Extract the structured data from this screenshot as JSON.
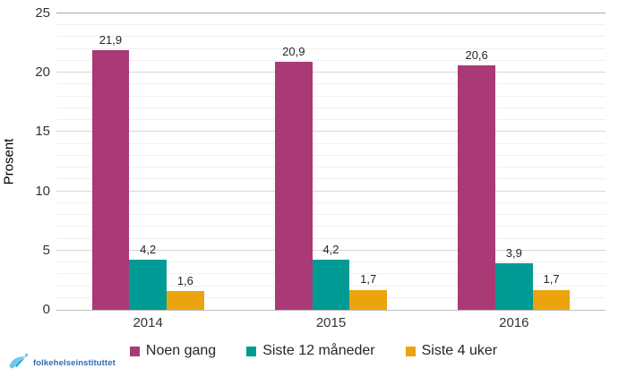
{
  "chart_data": {
    "type": "bar",
    "title": "",
    "xlabel": "",
    "ylabel": "Prosent",
    "categories": [
      "2014",
      "2015",
      "2016"
    ],
    "series": [
      {
        "name": "Noen gang",
        "color": "#a93a76",
        "values": [
          21.9,
          20.9,
          20.6
        ],
        "value_labels": [
          "21,9",
          "20,9",
          "20,6"
        ]
      },
      {
        "name": "Siste 12 måneder",
        "color": "#009b94",
        "values": [
          4.2,
          4.2,
          3.9
        ],
        "value_labels": [
          "4,2",
          "4,2",
          "3,9"
        ]
      },
      {
        "name": "Siste 4 uker",
        "color": "#eba40d",
        "values": [
          1.6,
          1.7,
          1.7
        ],
        "value_labels": [
          "1,6",
          "1,7",
          "1,7"
        ]
      }
    ],
    "ylim": [
      0,
      25
    ],
    "yticks": [
      0,
      5,
      10,
      15,
      20,
      25
    ],
    "minor_unit": 1,
    "grid": true,
    "legend_position": "bottom"
  },
  "footer": {
    "logo_text": "folkehelseinstituttet"
  },
  "colors": {
    "axis_line": "#bfbfbf",
    "major_grid": "#d6d6d6",
    "minor_grid": "#f0f0f0",
    "top_grid": "#a9a9a9",
    "logo_blue": "#2f6db5",
    "logo_light_blue": "#6ec8ea"
  }
}
